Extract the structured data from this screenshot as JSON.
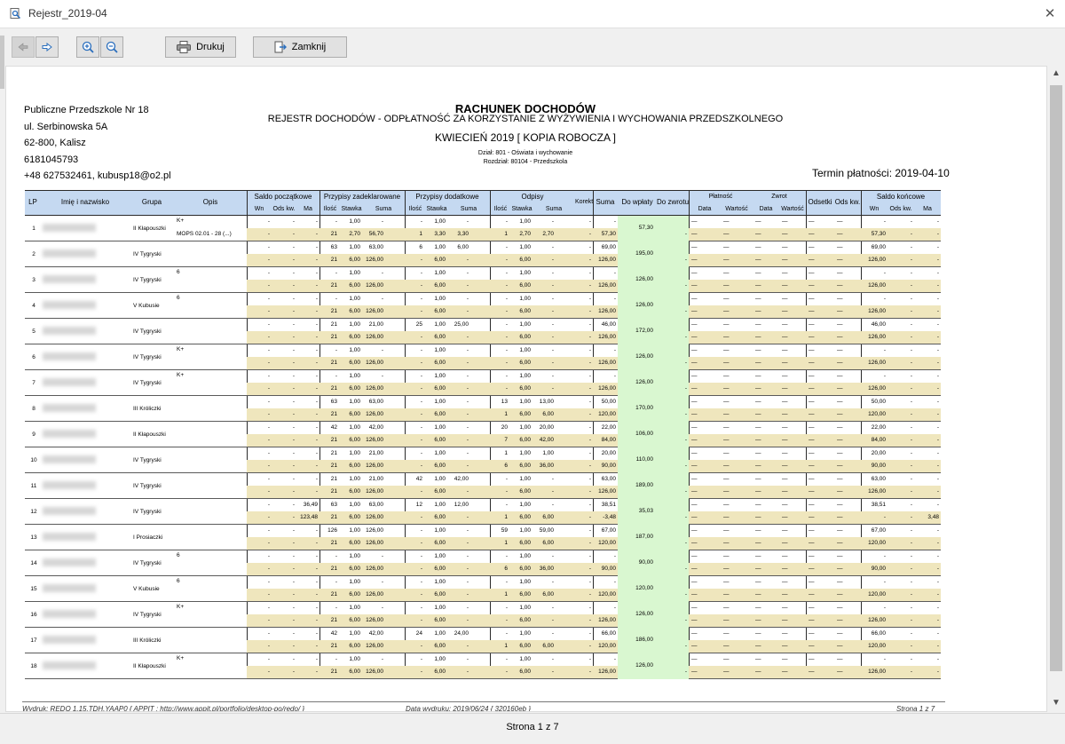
{
  "window": {
    "title": "Rejestr_2019-04"
  },
  "toolbar": {
    "print_label": "Drukuj",
    "close_label": "Zamknij"
  },
  "colors": {
    "header_bg": "#c5d9f1",
    "yellow_row": "#efe6bd",
    "green_col": "#d9f7d0"
  },
  "header": {
    "org_lines": [
      "Publiczne Przedszkole Nr 18",
      "ul. Serbinowska 5A",
      "62-800, Kalisz",
      "6181045793",
      "+48 627532461, kubusp18@o2.pl"
    ],
    "title": "RACHUNEK DOCHODÓW",
    "subtitle": "REJESTR DOCHODÓW - ODPŁATNOŚĆ ZA KORZYSTANIE Z WYŻYWIENIA I WYCHOWANIA PRZEDSZKOLNEGO",
    "period": "KWIECIEŃ 2019 [ KOPIA ROBOCZA ]",
    "dzial": "Dział: 801 - Oświata i wychowanie",
    "rozdzial": "Rozdział: 80104 - Przedszkola",
    "termin": "Termin płatności: 2019-04-10"
  },
  "table": {
    "headers": {
      "lp": "LP",
      "name": "Imię i nazwisko",
      "group": "Grupa",
      "desc": "Opis",
      "saldo_p": "Saldo początkowe",
      "zadekl": "Przypisy zadeklarowane",
      "dodatk": "Przypisy dodatkowe",
      "odpisy": "Odpisy",
      "korekta": "Korekta",
      "suma": "Suma",
      "do_wplaty": "Do wpłaty",
      "do_zwrotu": "Do zwrotu",
      "platnosc": "Płatność",
      "zwrot": "Zwrot",
      "odsetki": "Odsetki",
      "ods_kw": "Ods kw.",
      "saldo_k": "Saldo końcowe"
    },
    "sub": {
      "wn": "Wn",
      "odskw": "Ods kw.",
      "ma": "Ma",
      "ilosc": "Ilość",
      "stawka": "Stawka",
      "suma": "Suma",
      "data": "Data",
      "wartosc": "Wartość"
    },
    "rows": [
      {
        "lp": "1",
        "group": "II  Kłapouszki",
        "opis1": "K+",
        "opis2": "MOPS 02.01 - 28 (...)",
        "r1": {
          "wn": "-",
          "odskw": "-",
          "ma": "-",
          "il": "-",
          "st": "1,00",
          "su": "-",
          "dil": "-",
          "dst": "1,00",
          "dsu": "-",
          "oil": "-",
          "ost": "1,00",
          "osu": "-",
          "kor": "-",
          "suma": "-",
          "sk_wn": "-",
          "sk_odskw": "-",
          "sk_ma": "-"
        },
        "r2": {
          "wn": "-",
          "odskw": "-",
          "ma": "-",
          "il": "21",
          "st": "2,70",
          "su": "56,70",
          "dil": "1",
          "dst": "3,30",
          "dsu": "3,30",
          "oil": "1",
          "ost": "2,70",
          "osu": "2,70",
          "kor": "-",
          "suma": "57,30",
          "sk_wn": "57,30",
          "sk_odskw": "-",
          "sk_ma": "-"
        },
        "dowplaty": "57,30"
      },
      {
        "lp": "2",
        "group": "IV  Tygryski",
        "opis1": "",
        "opis2": "",
        "r1": {
          "wn": "-",
          "odskw": "-",
          "ma": "-",
          "il": "63",
          "st": "1,00",
          "su": "63,00",
          "dil": "6",
          "dst": "1,00",
          "dsu": "6,00",
          "oil": "-",
          "ost": "1,00",
          "osu": "-",
          "kor": "-",
          "suma": "69,00",
          "sk_wn": "69,00",
          "sk_odskw": "-",
          "sk_ma": "-"
        },
        "r2": {
          "wn": "-",
          "odskw": "-",
          "ma": "-",
          "il": "21",
          "st": "6,00",
          "su": "126,00",
          "dil": "-",
          "dst": "6,00",
          "dsu": "-",
          "oil": "-",
          "ost": "6,00",
          "osu": "-",
          "kor": "-",
          "suma": "126,00",
          "sk_wn": "126,00",
          "sk_odskw": "-",
          "sk_ma": "-"
        },
        "dowplaty": "195,00"
      },
      {
        "lp": "3",
        "group": "IV  Tygryski",
        "opis1": "6",
        "opis2": "",
        "r1": {
          "wn": "-",
          "odskw": "-",
          "ma": "-",
          "il": "-",
          "st": "1,00",
          "su": "-",
          "dil": "-",
          "dst": "1,00",
          "dsu": "-",
          "oil": "-",
          "ost": "1,00",
          "osu": "-",
          "kor": "-",
          "suma": "-",
          "sk_wn": "-",
          "sk_odskw": "-",
          "sk_ma": "-"
        },
        "r2": {
          "wn": "-",
          "odskw": "-",
          "ma": "-",
          "il": "21",
          "st": "6,00",
          "su": "126,00",
          "dil": "-",
          "dst": "6,00",
          "dsu": "-",
          "oil": "-",
          "ost": "6,00",
          "osu": "-",
          "kor": "-",
          "suma": "126,00",
          "sk_wn": "126,00",
          "sk_odskw": "-",
          "sk_ma": "-"
        },
        "dowplaty": "126,00"
      },
      {
        "lp": "4",
        "group": "V  Kubusie",
        "opis1": "6",
        "opis2": "",
        "r1": {
          "wn": "-",
          "odskw": "-",
          "ma": "-",
          "il": "-",
          "st": "1,00",
          "su": "-",
          "dil": "-",
          "dst": "1,00",
          "dsu": "-",
          "oil": "-",
          "ost": "1,00",
          "osu": "-",
          "kor": "-",
          "suma": "-",
          "sk_wn": "-",
          "sk_odskw": "-",
          "sk_ma": "-"
        },
        "r2": {
          "wn": "-",
          "odskw": "-",
          "ma": "-",
          "il": "21",
          "st": "6,00",
          "su": "126,00",
          "dil": "-",
          "dst": "6,00",
          "dsu": "-",
          "oil": "-",
          "ost": "6,00",
          "osu": "-",
          "kor": "-",
          "suma": "126,00",
          "sk_wn": "126,00",
          "sk_odskw": "-",
          "sk_ma": "-"
        },
        "dowplaty": "126,00"
      },
      {
        "lp": "5",
        "group": "IV  Tygryski",
        "opis1": "",
        "opis2": "",
        "r1": {
          "wn": "-",
          "odskw": "-",
          "ma": "-",
          "il": "21",
          "st": "1,00",
          "su": "21,00",
          "dil": "25",
          "dst": "1,00",
          "dsu": "25,00",
          "oil": "-",
          "ost": "1,00",
          "osu": "-",
          "kor": "-",
          "suma": "46,00",
          "sk_wn": "46,00",
          "sk_odskw": "-",
          "sk_ma": "-"
        },
        "r2": {
          "wn": "-",
          "odskw": "-",
          "ma": "-",
          "il": "21",
          "st": "6,00",
          "su": "126,00",
          "dil": "-",
          "dst": "6,00",
          "dsu": "-",
          "oil": "-",
          "ost": "6,00",
          "osu": "-",
          "kor": "-",
          "suma": "126,00",
          "sk_wn": "126,00",
          "sk_odskw": "-",
          "sk_ma": "-"
        },
        "dowplaty": "172,00"
      },
      {
        "lp": "6",
        "group": "IV  Tygryski",
        "opis1": "K+",
        "opis2": "",
        "r1": {
          "wn": "-",
          "odskw": "-",
          "ma": "-",
          "il": "-",
          "st": "1,00",
          "su": "-",
          "dil": "-",
          "dst": "1,00",
          "dsu": "-",
          "oil": "-",
          "ost": "1,00",
          "osu": "-",
          "kor": "-",
          "suma": "-",
          "sk_wn": "-",
          "sk_odskw": "-",
          "sk_ma": "-"
        },
        "r2": {
          "wn": "-",
          "odskw": "-",
          "ma": "-",
          "il": "21",
          "st": "6,00",
          "su": "126,00",
          "dil": "-",
          "dst": "6,00",
          "dsu": "-",
          "oil": "-",
          "ost": "6,00",
          "osu": "-",
          "kor": "-",
          "suma": "126,00",
          "sk_wn": "126,00",
          "sk_odskw": "-",
          "sk_ma": "-"
        },
        "dowplaty": "126,00"
      },
      {
        "lp": "7",
        "group": "IV  Tygryski",
        "opis1": "K+",
        "opis2": "",
        "r1": {
          "wn": "-",
          "odskw": "-",
          "ma": "-",
          "il": "-",
          "st": "1,00",
          "su": "-",
          "dil": "-",
          "dst": "1,00",
          "dsu": "-",
          "oil": "-",
          "ost": "1,00",
          "osu": "-",
          "kor": "-",
          "suma": "-",
          "sk_wn": "-",
          "sk_odskw": "-",
          "sk_ma": "-"
        },
        "r2": {
          "wn": "-",
          "odskw": "-",
          "ma": "-",
          "il": "21",
          "st": "6,00",
          "su": "126,00",
          "dil": "-",
          "dst": "6,00",
          "dsu": "-",
          "oil": "-",
          "ost": "6,00",
          "osu": "-",
          "kor": "-",
          "suma": "126,00",
          "sk_wn": "126,00",
          "sk_odskw": "-",
          "sk_ma": "-"
        },
        "dowplaty": "126,00"
      },
      {
        "lp": "8",
        "group": "III  Króliczki",
        "opis1": "",
        "opis2": "",
        "r1": {
          "wn": "-",
          "odskw": "-",
          "ma": "-",
          "il": "63",
          "st": "1,00",
          "su": "63,00",
          "dil": "-",
          "dst": "1,00",
          "dsu": "-",
          "oil": "13",
          "ost": "1,00",
          "osu": "13,00",
          "kor": "-",
          "suma": "50,00",
          "sk_wn": "50,00",
          "sk_odskw": "-",
          "sk_ma": "-"
        },
        "r2": {
          "wn": "-",
          "odskw": "-",
          "ma": "-",
          "il": "21",
          "st": "6,00",
          "su": "126,00",
          "dil": "-",
          "dst": "6,00",
          "dsu": "-",
          "oil": "1",
          "ost": "6,00",
          "osu": "6,00",
          "kor": "-",
          "suma": "120,00",
          "sk_wn": "120,00",
          "sk_odskw": "-",
          "sk_ma": "-"
        },
        "dowplaty": "170,00"
      },
      {
        "lp": "9",
        "group": "II  Kłapouszki",
        "opis1": "",
        "opis2": "",
        "r1": {
          "wn": "-",
          "odskw": "-",
          "ma": "-",
          "il": "42",
          "st": "1,00",
          "su": "42,00",
          "dil": "-",
          "dst": "1,00",
          "dsu": "-",
          "oil": "20",
          "ost": "1,00",
          "osu": "20,00",
          "kor": "-",
          "suma": "22,00",
          "sk_wn": "22,00",
          "sk_odskw": "-",
          "sk_ma": "-"
        },
        "r2": {
          "wn": "-",
          "odskw": "-",
          "ma": "-",
          "il": "21",
          "st": "6,00",
          "su": "126,00",
          "dil": "-",
          "dst": "6,00",
          "dsu": "-",
          "oil": "7",
          "ost": "6,00",
          "osu": "42,00",
          "kor": "-",
          "suma": "84,00",
          "sk_wn": "84,00",
          "sk_odskw": "-",
          "sk_ma": "-"
        },
        "dowplaty": "106,00"
      },
      {
        "lp": "10",
        "group": "IV  Tygryski",
        "opis1": "",
        "opis2": "",
        "r1": {
          "wn": "-",
          "odskw": "-",
          "ma": "-",
          "il": "21",
          "st": "1,00",
          "su": "21,00",
          "dil": "-",
          "dst": "1,00",
          "dsu": "-",
          "oil": "1",
          "ost": "1,00",
          "osu": "1,00",
          "kor": "-",
          "suma": "20,00",
          "sk_wn": "20,00",
          "sk_odskw": "-",
          "sk_ma": "-"
        },
        "r2": {
          "wn": "-",
          "odskw": "-",
          "ma": "-",
          "il": "21",
          "st": "6,00",
          "su": "126,00",
          "dil": "-",
          "dst": "6,00",
          "dsu": "-",
          "oil": "6",
          "ost": "6,00",
          "osu": "36,00",
          "kor": "-",
          "suma": "90,00",
          "sk_wn": "90,00",
          "sk_odskw": "-",
          "sk_ma": "-"
        },
        "dowplaty": "110,00"
      },
      {
        "lp": "11",
        "group": "IV  Tygryski",
        "opis1": "",
        "opis2": "",
        "r1": {
          "wn": "-",
          "odskw": "-",
          "ma": "-",
          "il": "21",
          "st": "1,00",
          "su": "21,00",
          "dil": "42",
          "dst": "1,00",
          "dsu": "42,00",
          "oil": "-",
          "ost": "1,00",
          "osu": "-",
          "kor": "-",
          "suma": "63,00",
          "sk_wn": "63,00",
          "sk_odskw": "-",
          "sk_ma": "-"
        },
        "r2": {
          "wn": "-",
          "odskw": "-",
          "ma": "-",
          "il": "21",
          "st": "6,00",
          "su": "126,00",
          "dil": "-",
          "dst": "6,00",
          "dsu": "-",
          "oil": "-",
          "ost": "6,00",
          "osu": "-",
          "kor": "-",
          "suma": "126,00",
          "sk_wn": "126,00",
          "sk_odskw": "-",
          "sk_ma": "-"
        },
        "dowplaty": "189,00"
      },
      {
        "lp": "12",
        "group": "IV  Tygryski",
        "opis1": "",
        "opis2": "",
        "r1": {
          "wn": "-",
          "odskw": "-",
          "ma": "36,49",
          "il": "63",
          "st": "1,00",
          "su": "63,00",
          "dil": "12",
          "dst": "1,00",
          "dsu": "12,00",
          "oil": "-",
          "ost": "1,00",
          "osu": "-",
          "kor": "-",
          "suma": "38,51",
          "sk_wn": "38,51",
          "sk_odskw": "-",
          "sk_ma": "-"
        },
        "r2": {
          "wn": "-",
          "odskw": "-",
          "ma": "123,48",
          "il": "21",
          "st": "6,00",
          "su": "126,00",
          "dil": "-",
          "dst": "6,00",
          "dsu": "-",
          "oil": "1",
          "ost": "6,00",
          "osu": "6,00",
          "kor": "-",
          "suma": "-3,48",
          "sk_wn": "-",
          "sk_odskw": "-",
          "sk_ma": "3,48"
        },
        "dowplaty": "35,03"
      },
      {
        "lp": "13",
        "group": "I  Prosiaczki",
        "opis1": "",
        "opis2": "",
        "r1": {
          "wn": "-",
          "odskw": "-",
          "ma": "-",
          "il": "126",
          "st": "1,00",
          "su": "126,00",
          "dil": "-",
          "dst": "1,00",
          "dsu": "-",
          "oil": "59",
          "ost": "1,00",
          "osu": "59,00",
          "kor": "-",
          "suma": "67,00",
          "sk_wn": "67,00",
          "sk_odskw": "-",
          "sk_ma": "-"
        },
        "r2": {
          "wn": "-",
          "odskw": "-",
          "ma": "-",
          "il": "21",
          "st": "6,00",
          "su": "126,00",
          "dil": "-",
          "dst": "6,00",
          "dsu": "-",
          "oil": "1",
          "ost": "6,00",
          "osu": "6,00",
          "kor": "-",
          "suma": "120,00",
          "sk_wn": "120,00",
          "sk_odskw": "-",
          "sk_ma": "-"
        },
        "dowplaty": "187,00"
      },
      {
        "lp": "14",
        "group": "IV  Tygryski",
        "opis1": "6",
        "opis2": "",
        "r1": {
          "wn": "-",
          "odskw": "-",
          "ma": "-",
          "il": "-",
          "st": "1,00",
          "su": "-",
          "dil": "-",
          "dst": "1,00",
          "dsu": "-",
          "oil": "-",
          "ost": "1,00",
          "osu": "-",
          "kor": "-",
          "suma": "-",
          "sk_wn": "-",
          "sk_odskw": "-",
          "sk_ma": "-"
        },
        "r2": {
          "wn": "-",
          "odskw": "-",
          "ma": "-",
          "il": "21",
          "st": "6,00",
          "su": "126,00",
          "dil": "-",
          "dst": "6,00",
          "dsu": "-",
          "oil": "6",
          "ost": "6,00",
          "osu": "36,00",
          "kor": "-",
          "suma": "90,00",
          "sk_wn": "90,00",
          "sk_odskw": "-",
          "sk_ma": "-"
        },
        "dowplaty": "90,00"
      },
      {
        "lp": "15",
        "group": "V  Kubusie",
        "opis1": "6",
        "opis2": "",
        "r1": {
          "wn": "-",
          "odskw": "-",
          "ma": "-",
          "il": "-",
          "st": "1,00",
          "su": "-",
          "dil": "-",
          "dst": "1,00",
          "dsu": "-",
          "oil": "-",
          "ost": "1,00",
          "osu": "-",
          "kor": "-",
          "suma": "-",
          "sk_wn": "-",
          "sk_odskw": "-",
          "sk_ma": "-"
        },
        "r2": {
          "wn": "-",
          "odskw": "-",
          "ma": "-",
          "il": "21",
          "st": "6,00",
          "su": "126,00",
          "dil": "-",
          "dst": "6,00",
          "dsu": "-",
          "oil": "1",
          "ost": "6,00",
          "osu": "6,00",
          "kor": "-",
          "suma": "120,00",
          "sk_wn": "120,00",
          "sk_odskw": "-",
          "sk_ma": "-"
        },
        "dowplaty": "120,00"
      },
      {
        "lp": "16",
        "group": "IV  Tygryski",
        "opis1": "K+",
        "opis2": "",
        "r1": {
          "wn": "-",
          "odskw": "-",
          "ma": "-",
          "il": "-",
          "st": "1,00",
          "su": "-",
          "dil": "-",
          "dst": "1,00",
          "dsu": "-",
          "oil": "-",
          "ost": "1,00",
          "osu": "-",
          "kor": "-",
          "suma": "-",
          "sk_wn": "-",
          "sk_odskw": "-",
          "sk_ma": "-"
        },
        "r2": {
          "wn": "-",
          "odskw": "-",
          "ma": "-",
          "il": "21",
          "st": "6,00",
          "su": "126,00",
          "dil": "-",
          "dst": "6,00",
          "dsu": "-",
          "oil": "-",
          "ost": "6,00",
          "osu": "-",
          "kor": "-",
          "suma": "126,00",
          "sk_wn": "126,00",
          "sk_odskw": "-",
          "sk_ma": "-"
        },
        "dowplaty": "126,00"
      },
      {
        "lp": "17",
        "group": "III  Króliczki",
        "opis1": "",
        "opis2": "",
        "r1": {
          "wn": "-",
          "odskw": "-",
          "ma": "-",
          "il": "42",
          "st": "1,00",
          "su": "42,00",
          "dil": "24",
          "dst": "1,00",
          "dsu": "24,00",
          "oil": "-",
          "ost": "1,00",
          "osu": "-",
          "kor": "-",
          "suma": "66,00",
          "sk_wn": "66,00",
          "sk_odskw": "-",
          "sk_ma": "-"
        },
        "r2": {
          "wn": "-",
          "odskw": "-",
          "ma": "-",
          "il": "21",
          "st": "6,00",
          "su": "126,00",
          "dil": "-",
          "dst": "6,00",
          "dsu": "-",
          "oil": "1",
          "ost": "6,00",
          "osu": "6,00",
          "kor": "-",
          "suma": "120,00",
          "sk_wn": "120,00",
          "sk_odskw": "-",
          "sk_ma": "-"
        },
        "dowplaty": "186,00"
      },
      {
        "lp": "18",
        "group": "II  Kłapouszki",
        "opis1": "K+",
        "opis2": "",
        "r1": {
          "wn": "-",
          "odskw": "-",
          "ma": "-",
          "il": "-",
          "st": "1,00",
          "su": "-",
          "dil": "-",
          "dst": "1,00",
          "dsu": "-",
          "oil": "-",
          "ost": "1,00",
          "osu": "-",
          "kor": "-",
          "suma": "-",
          "sk_wn": "-",
          "sk_odskw": "-",
          "sk_ma": "-"
        },
        "r2": {
          "wn": "-",
          "odskw": "-",
          "ma": "-",
          "il": "21",
          "st": "6,00",
          "su": "126,00",
          "dil": "-",
          "dst": "6,00",
          "dsu": "-",
          "oil": "-",
          "ost": "6,00",
          "osu": "-",
          "kor": "-",
          "suma": "126,00",
          "sk_wn": "126,00",
          "sk_odskw": "-",
          "sk_ma": "-"
        },
        "dowplaty": "126,00"
      }
    ]
  },
  "footer": {
    "left": "Wydruk: REDO 1.15.TDH.YAAP0 { APPIT : http://www.appit.pl/portfolio/desktop-po/redo/ }",
    "center": "Data wydruku: 2019/06/24 { 320160eb }",
    "right": "Strona 1 z 7"
  },
  "status": {
    "page": "Strona 1 z 7"
  }
}
